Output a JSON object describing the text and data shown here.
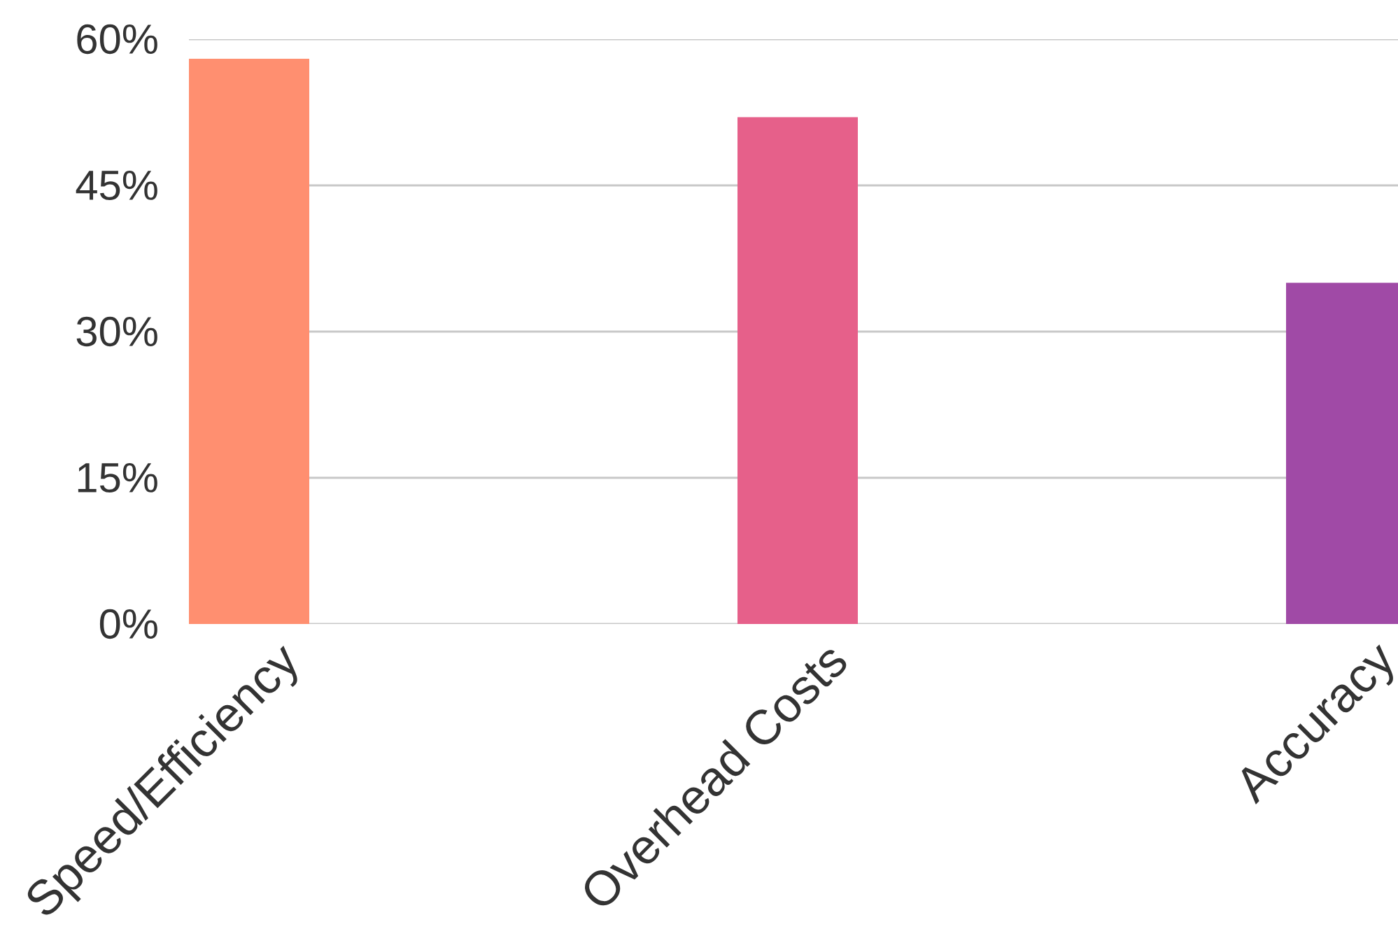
{
  "chart_data": {
    "type": "bar",
    "categories": [
      "Speed/Efficiency",
      "Overhead Costs",
      "Accuracy"
    ],
    "values": [
      58,
      52,
      35
    ],
    "colors": [
      "#ff8f70",
      "#e6608a",
      "#a04aa6"
    ],
    "ylim": [
      0,
      60
    ],
    "yticks": [
      {
        "value": 0,
        "label": "0%"
      },
      {
        "value": 15,
        "label": "15%"
      },
      {
        "value": 30,
        "label": "30%"
      },
      {
        "value": 45,
        "label": "45%"
      },
      {
        "value": 60,
        "label": "60%"
      }
    ],
    "grid": "y"
  }
}
